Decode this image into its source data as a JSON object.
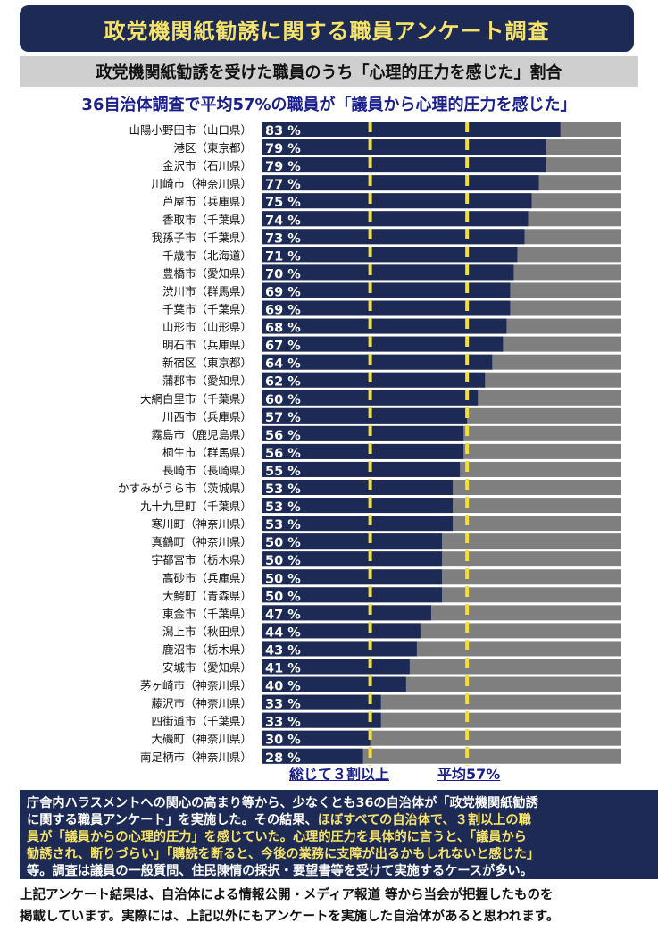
{
  "title": "政党機関紙勧誘に関する職員アンケート調査",
  "subtitle": "政党機関紙勧誘を受けた職員のうち「心理的圧力を感じた」割合",
  "headline": "36自治体調査で平均57%の職員が「議員から心理的圧力を感じた」",
  "legend": {
    "threshold_label": "総じて３割以上",
    "average_label": "平均57%"
  },
  "description": {
    "line1": "庁舎内ハラスメントへの関心の高まり等から、少なくとも36の自治体が「政党機関紙勧誘",
    "line2": "に関する職員アンケート」を実施した。その結果、",
    "line2_hl": "ほぼすべての自治体で、３割以上の職",
    "line3_hl": "員が「議員からの心理的圧力」を感じていた。心理的圧力を具体的に言うと、「議員から",
    "line4_hl": "勧誘され、断りづらい」「購読を断ると、今後の業務に支障が出るかもしれないと感じた」",
    "line5": "等。調査は議員の一般質問、住民陳情の採択・要望書等を受けて実施するケースが多い。"
  },
  "footnote": {
    "line1": "上記アンケート結果は、自治体による情報公開・メディア報道 等から当会が把握したものを",
    "line2": "掲載しています。実際には、上記以外にもアンケートを実施した自治体があると思われます。"
  },
  "colors": {
    "bar": "#1c2a55",
    "track": "#7f7f7f",
    "marker": "#f2df3a",
    "title_bg": "#1c2a55",
    "title_text": "#f6e36a"
  },
  "chart_data": {
    "type": "bar",
    "orientation": "horizontal",
    "ylim": [
      0,
      100
    ],
    "value_suffix": " %",
    "reference_lines": [
      30,
      57
    ],
    "categories": [
      "山陽小野田市（山口県）",
      "港区（東京都）",
      "金沢市（石川県）",
      "川崎市（神奈川県）",
      "芦屋市（兵庫県）",
      "香取市（千葉県）",
      "我孫子市（千葉県）",
      "千歳市（北海道）",
      "豊橋市（愛知県）",
      "渋川市（群馬県）",
      "千葉市（千葉県）",
      "山形市（山形県）",
      "明石市（兵庫県）",
      "新宿区（東京都）",
      "蒲郡市（愛知県）",
      "大網白里市（千葉県）",
      "川西市（兵庫県）",
      "霧島市（鹿児島県）",
      "桐生市（群馬県）",
      "長崎市（長崎県）",
      "かすみがうら市（茨城県）",
      "九十九里町（千葉県）",
      "寒川町（神奈川県）",
      "真鶴町（神奈川県）",
      "宇都宮市（栃木県）",
      "高砂市（兵庫県）",
      "大鰐町（青森県）",
      "東金市（千葉県）",
      "潟上市（秋田県）",
      "鹿沼市（栃木県）",
      "安城市（愛知県）",
      "茅ヶ崎市（神奈川県）",
      "藤沢市（神奈川県）",
      "四街道市（千葉県）",
      "大磯町（神奈川県）",
      "南足柄市（神奈川県）"
    ],
    "values": [
      83,
      79,
      79,
      77,
      75,
      74,
      73,
      71,
      70,
      69,
      69,
      68,
      67,
      64,
      62,
      60,
      57,
      56,
      56,
      55,
      53,
      53,
      53,
      50,
      50,
      50,
      50,
      47,
      44,
      43,
      41,
      40,
      33,
      33,
      30,
      28
    ]
  }
}
